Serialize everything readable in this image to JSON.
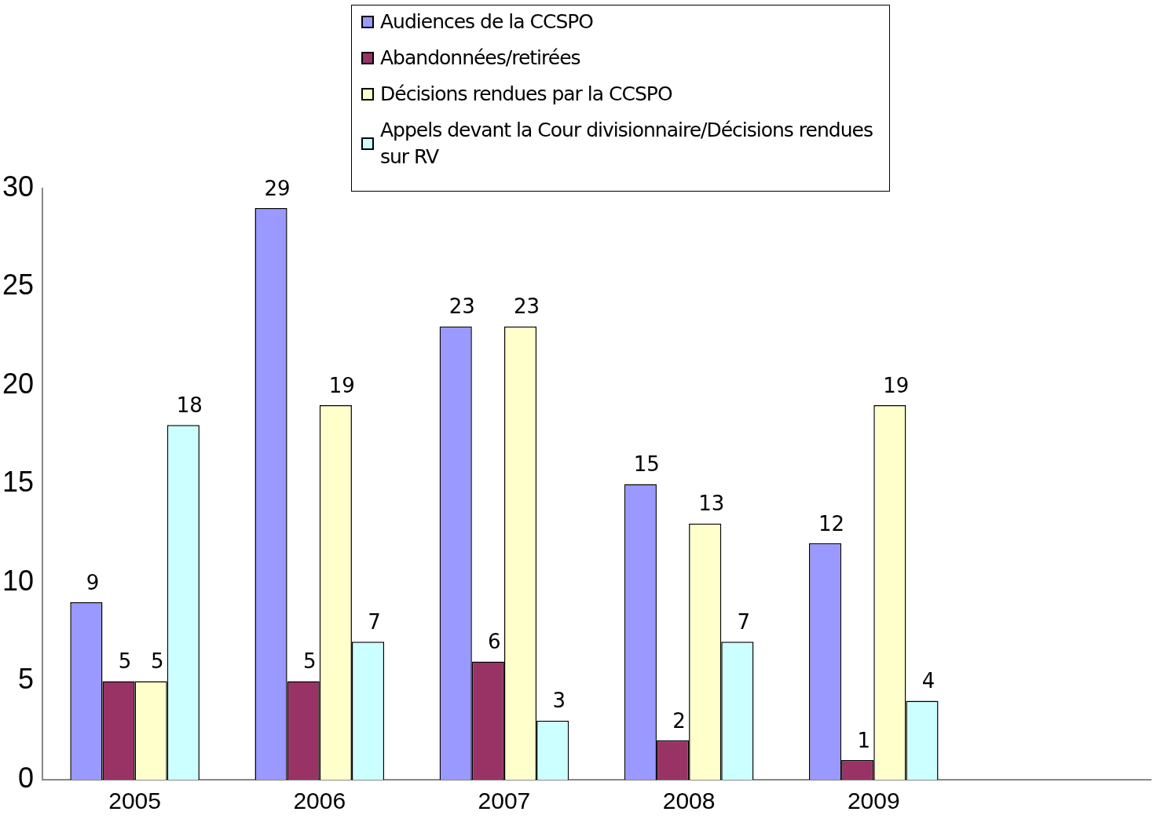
{
  "chart_data": {
    "type": "bar",
    "categories": [
      "2005",
      "2006",
      "2007",
      "2008",
      "2009",
      null
    ],
    "series": [
      {
        "name": "Audiences de la CCSPO",
        "color": "#9999ff",
        "values": [
          9,
          29,
          23,
          15,
          12,
          null
        ]
      },
      {
        "name": "Abandonnées/retirées",
        "color": "#993366",
        "values": [
          5,
          5,
          6,
          2,
          1,
          null
        ]
      },
      {
        "name": "Décisions rendues par la CCSPO",
        "color": "#ffffcc",
        "values": [
          5,
          19,
          23,
          13,
          19,
          null
        ]
      },
      {
        "name": " Appels devant la Cour divisionnaire/Décisions rendues sur RV",
        "color": "#ccffff",
        "values": [
          18,
          7,
          3,
          7,
          4,
          null
        ]
      }
    ],
    "ylim": [
      0,
      30
    ],
    "yticks": [
      0,
      5,
      10,
      15,
      20,
      25,
      30
    ],
    "grid": false,
    "legend": "top",
    "data_labels": true
  }
}
